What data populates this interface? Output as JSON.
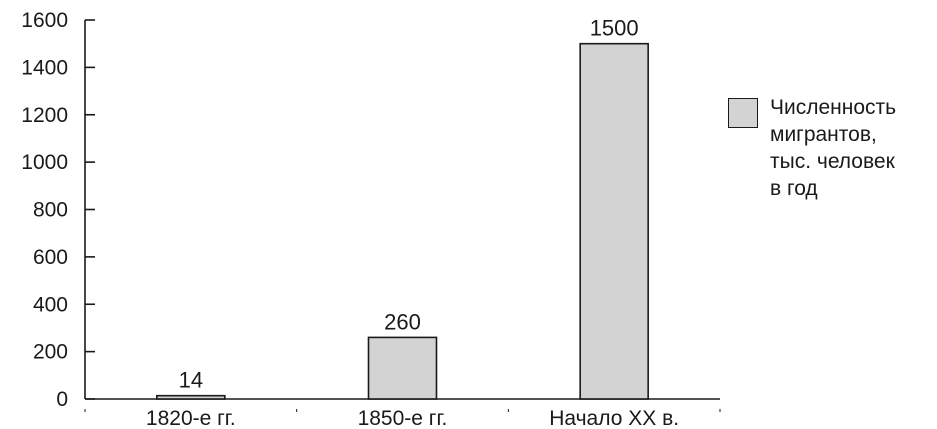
{
  "chart_data": {
    "type": "bar",
    "categories": [
      "1820-е гг.",
      "1850-е гг.",
      "Начало XX в."
    ],
    "series": [
      {
        "name": "Численность мигрантов, тыс. человек в год",
        "values": [
          14,
          260,
          1500
        ],
        "labels": [
          "14",
          "260",
          "1500"
        ]
      }
    ],
    "ylim": [
      0,
      1600
    ],
    "yticks": [
      0,
      200,
      400,
      600,
      800,
      1000,
      1200,
      1400,
      1600
    ],
    "grid": false,
    "legend_position": "right",
    "bar_color": "#d3d3d3",
    "bar_edge_color": "#1a1a1a",
    "axis_color": "#1a1a1a"
  },
  "legend": {
    "lines": [
      "Численность",
      "мигрантов,",
      "тыс. человек",
      "в год"
    ]
  }
}
